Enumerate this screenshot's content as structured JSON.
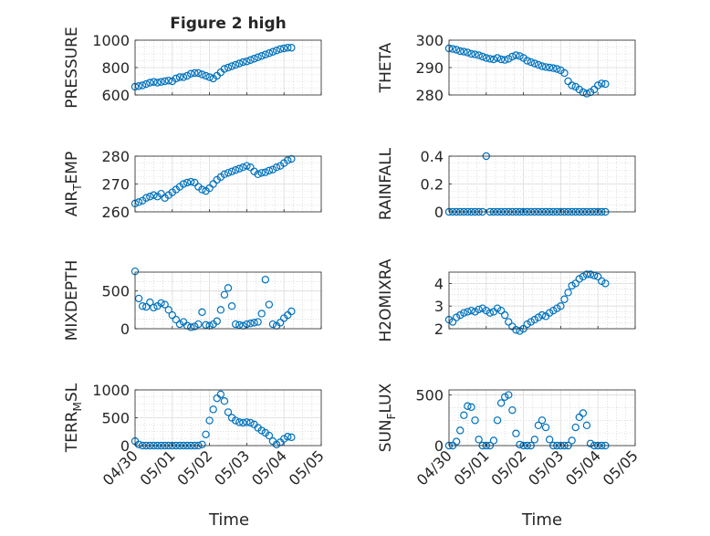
{
  "figure": {
    "title": "Figure 2 high",
    "xlabel": "Time",
    "x_ticks": [
      "04/30",
      "05/01",
      "05/02",
      "05/03",
      "05/04",
      "05/05"
    ],
    "marker_color": "#0072BD"
  },
  "chart_data": [
    {
      "type": "scatter",
      "ylabel": "PRESSURE",
      "ylim": [
        600,
        1000
      ],
      "yticks": [
        600,
        800,
        1000
      ],
      "x": [
        0.0,
        0.1,
        0.2,
        0.3,
        0.4,
        0.5,
        0.6,
        0.7,
        0.8,
        0.9,
        1.0,
        1.1,
        1.2,
        1.3,
        1.4,
        1.5,
        1.6,
        1.7,
        1.8,
        1.9,
        2.0,
        2.1,
        2.2,
        2.3,
        2.4,
        2.5,
        2.6,
        2.7,
        2.8,
        2.9,
        3.0,
        3.1,
        3.2,
        3.3,
        3.4,
        3.5,
        3.6,
        3.7,
        3.8,
        3.9,
        4.0,
        4.1,
        4.2
      ],
      "y": [
        660,
        665,
        670,
        680,
        690,
        695,
        690,
        695,
        700,
        705,
        700,
        720,
        730,
        730,
        740,
        755,
        760,
        760,
        750,
        740,
        730,
        720,
        740,
        765,
        790,
        800,
        810,
        820,
        830,
        840,
        845,
        855,
        865,
        875,
        885,
        895,
        905,
        915,
        925,
        935,
        940,
        945,
        945
      ]
    },
    {
      "type": "scatter",
      "ylabel": "THETA",
      "ylim": [
        280,
        300
      ],
      "yticks": [
        280,
        290,
        300
      ],
      "x": [
        0.0,
        0.1,
        0.2,
        0.3,
        0.4,
        0.5,
        0.6,
        0.7,
        0.8,
        0.9,
        1.0,
        1.1,
        1.2,
        1.3,
        1.4,
        1.5,
        1.6,
        1.7,
        1.8,
        1.9,
        2.0,
        2.1,
        2.2,
        2.3,
        2.4,
        2.5,
        2.6,
        2.7,
        2.8,
        2.9,
        3.0,
        3.1,
        3.2,
        3.3,
        3.4,
        3.5,
        3.6,
        3.7,
        3.8,
        3.9,
        4.0,
        4.1,
        4.2
      ],
      "y": [
        297,
        296.8,
        296.5,
        296,
        295.8,
        295.5,
        295,
        294.8,
        294.5,
        294,
        293.5,
        293.2,
        293,
        293.5,
        293,
        292.8,
        293.2,
        294,
        294.5,
        294.2,
        293.5,
        292.5,
        292,
        291.5,
        291,
        290.5,
        290.2,
        290,
        289.8,
        289.5,
        289,
        288,
        285,
        283.5,
        283,
        282,
        281,
        280.5,
        281,
        282,
        283.5,
        284.2,
        284
      ]
    },
    {
      "type": "scatter",
      "ylabel": "AIR_TEMP",
      "ylim": [
        260,
        280
      ],
      "yticks": [
        260,
        270,
        280
      ],
      "x": [
        0.0,
        0.1,
        0.2,
        0.3,
        0.4,
        0.5,
        0.6,
        0.7,
        0.8,
        0.9,
        1.0,
        1.1,
        1.2,
        1.3,
        1.4,
        1.5,
        1.6,
        1.7,
        1.8,
        1.9,
        2.0,
        2.1,
        2.2,
        2.3,
        2.4,
        2.5,
        2.6,
        2.7,
        2.8,
        2.9,
        3.0,
        3.1,
        3.2,
        3.3,
        3.4,
        3.5,
        3.6,
        3.7,
        3.8,
        3.9,
        4.0,
        4.1,
        4.2
      ],
      "y": [
        263,
        263.5,
        264,
        265,
        265.5,
        266,
        265.5,
        266.5,
        265,
        266,
        267,
        268,
        269,
        270,
        270.5,
        270.8,
        270.5,
        269,
        268,
        267.5,
        268.5,
        270,
        271.5,
        272.5,
        273.5,
        274,
        274.5,
        275,
        275.5,
        276,
        276.5,
        276,
        274.5,
        273.5,
        274,
        274.2,
        274.8,
        275.2,
        276,
        276.5,
        277.5,
        278.5,
        279
      ]
    },
    {
      "type": "scatter",
      "ylabel": "RAINFALL",
      "ylim": [
        0,
        0.4
      ],
      "yticks": [
        0,
        0.2,
        0.4
      ],
      "x": [
        0.0,
        0.1,
        0.2,
        0.3,
        0.4,
        0.5,
        0.6,
        0.7,
        0.8,
        0.9,
        1.0,
        1.1,
        1.2,
        1.3,
        1.4,
        1.5,
        1.6,
        1.7,
        1.8,
        1.9,
        2.0,
        2.1,
        2.2,
        2.3,
        2.4,
        2.5,
        2.6,
        2.7,
        2.8,
        2.9,
        3.0,
        3.1,
        3.2,
        3.3,
        3.4,
        3.5,
        3.6,
        3.7,
        3.8,
        3.9,
        4.0,
        4.1,
        4.2
      ],
      "y": [
        0,
        0,
        0,
        0,
        0,
        0,
        0,
        0,
        0,
        0,
        0.4,
        0,
        0,
        0,
        0,
        0,
        0,
        0,
        0,
        0,
        0,
        0,
        0,
        0,
        0,
        0,
        0,
        0,
        0,
        0,
        0,
        0,
        0,
        0,
        0,
        0,
        0,
        0,
        0,
        0,
        0,
        0,
        0
      ]
    },
    {
      "type": "scatter",
      "ylabel": "MIXDEPTH",
      "ylim": [
        0,
        750
      ],
      "yticks": [
        0,
        500
      ],
      "x": [
        0.0,
        0.1,
        0.2,
        0.3,
        0.4,
        0.5,
        0.6,
        0.7,
        0.8,
        0.9,
        1.0,
        1.1,
        1.2,
        1.3,
        1.4,
        1.5,
        1.6,
        1.7,
        1.8,
        1.9,
        2.0,
        2.1,
        2.2,
        2.3,
        2.4,
        2.5,
        2.6,
        2.7,
        2.8,
        2.9,
        3.0,
        3.1,
        3.2,
        3.3,
        3.4,
        3.5,
        3.6,
        3.7,
        3.8,
        3.9,
        4.0,
        4.1,
        4.2
      ],
      "y": [
        760,
        400,
        300,
        290,
        350,
        280,
        300,
        340,
        320,
        250,
        180,
        120,
        60,
        90,
        40,
        20,
        30,
        60,
        220,
        50,
        40,
        60,
        100,
        250,
        450,
        540,
        300,
        60,
        50,
        40,
        60,
        70,
        80,
        90,
        200,
        650,
        320,
        60,
        40,
        80,
        140,
        180,
        230
      ]
    },
    {
      "type": "scatter",
      "ylabel": "H2OMIXRA",
      "ylim": [
        2,
        4.5
      ],
      "yticks": [
        2,
        3,
        4
      ],
      "x": [
        0.0,
        0.1,
        0.2,
        0.3,
        0.4,
        0.5,
        0.6,
        0.7,
        0.8,
        0.9,
        1.0,
        1.1,
        1.2,
        1.3,
        1.4,
        1.5,
        1.6,
        1.7,
        1.8,
        1.9,
        2.0,
        2.1,
        2.2,
        2.3,
        2.4,
        2.5,
        2.6,
        2.7,
        2.8,
        2.9,
        3.0,
        3.1,
        3.2,
        3.3,
        3.4,
        3.5,
        3.6,
        3.7,
        3.8,
        3.9,
        4.0,
        4.1,
        4.2
      ],
      "y": [
        2.4,
        2.3,
        2.5,
        2.6,
        2.7,
        2.75,
        2.8,
        2.75,
        2.85,
        2.9,
        2.8,
        2.7,
        2.75,
        2.9,
        2.8,
        2.6,
        2.3,
        2.1,
        1.95,
        1.9,
        2.0,
        2.2,
        2.3,
        2.4,
        2.5,
        2.6,
        2.55,
        2.7,
        2.8,
        2.9,
        3.0,
        3.3,
        3.6,
        3.9,
        4.0,
        4.2,
        4.3,
        4.4,
        4.4,
        4.35,
        4.3,
        4.1,
        4.0
      ]
    },
    {
      "type": "scatter",
      "ylabel": "TERR_MSL",
      "ylim": [
        0,
        1000
      ],
      "yticks": [
        0,
        500,
        1000
      ],
      "x": [
        0.0,
        0.1,
        0.2,
        0.3,
        0.4,
        0.5,
        0.6,
        0.7,
        0.8,
        0.9,
        1.0,
        1.1,
        1.2,
        1.3,
        1.4,
        1.5,
        1.6,
        1.7,
        1.8,
        1.9,
        2.0,
        2.1,
        2.2,
        2.3,
        2.4,
        2.5,
        2.6,
        2.7,
        2.8,
        2.9,
        3.0,
        3.1,
        3.2,
        3.3,
        3.4,
        3.5,
        3.6,
        3.7,
        3.8,
        3.9,
        4.0,
        4.1,
        4.2
      ],
      "y": [
        80,
        20,
        0,
        0,
        0,
        0,
        0,
        0,
        0,
        0,
        0,
        0,
        0,
        0,
        0,
        0,
        0,
        0,
        20,
        200,
        450,
        650,
        850,
        920,
        800,
        600,
        500,
        450,
        420,
        410,
        420,
        410,
        380,
        320,
        270,
        230,
        180,
        80,
        20,
        60,
        120,
        160,
        150
      ]
    },
    {
      "type": "scatter",
      "ylabel": "SUN_FLUX",
      "ylim": [
        0,
        550
      ],
      "yticks": [
        0,
        500
      ],
      "x": [
        0.0,
        0.1,
        0.2,
        0.3,
        0.4,
        0.5,
        0.6,
        0.7,
        0.8,
        0.9,
        1.0,
        1.1,
        1.2,
        1.3,
        1.4,
        1.5,
        1.6,
        1.7,
        1.8,
        1.9,
        2.0,
        2.1,
        2.2,
        2.3,
        2.4,
        2.5,
        2.6,
        2.7,
        2.8,
        2.9,
        3.0,
        3.1,
        3.2,
        3.3,
        3.4,
        3.5,
        3.6,
        3.7,
        3.8,
        3.9,
        4.0,
        4.1,
        4.2
      ],
      "y": [
        0,
        0,
        40,
        150,
        300,
        390,
        380,
        250,
        60,
        0,
        0,
        0,
        50,
        250,
        420,
        480,
        500,
        350,
        120,
        10,
        0,
        0,
        0,
        60,
        200,
        250,
        180,
        60,
        0,
        0,
        0,
        0,
        0,
        50,
        180,
        280,
        320,
        200,
        20,
        0,
        0,
        0,
        0
      ]
    }
  ]
}
